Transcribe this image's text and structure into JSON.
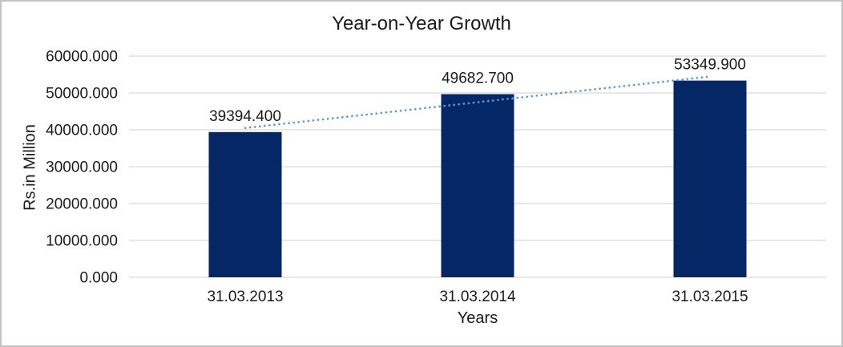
{
  "window": {
    "background": "#FFFFFF",
    "border_color": "#C3C3C3"
  },
  "chart_data": {
    "type": "bar",
    "title": "Year-on-Year Growth",
    "categories": [
      "31.03.2013",
      "31.03.2014",
      "31.03.2015"
    ],
    "series": [
      {
        "name": "Year-on-Year Growth",
        "values": [
          39394.4,
          49682.7,
          53349.9
        ]
      }
    ],
    "value_labels": [
      "39394.400",
      "49682.700",
      "53349.900"
    ],
    "xlabel": "Years",
    "ylabel": "Rs.in Million",
    "ylim": [
      0,
      60000
    ],
    "ytick_step": 10000,
    "ytick_labels": [
      "0.000",
      "10000.000",
      "20000.000",
      "30000.000",
      "40000.000",
      "50000.000",
      "60000.000"
    ],
    "grid": true,
    "legend": "none",
    "trendline": {
      "type": "linear",
      "style": "dotted"
    },
    "colors": {
      "bar": "#052765",
      "trendline": "#5B9BD5",
      "gridline": "#D9D9D9",
      "text": "#1A1A1A"
    }
  }
}
